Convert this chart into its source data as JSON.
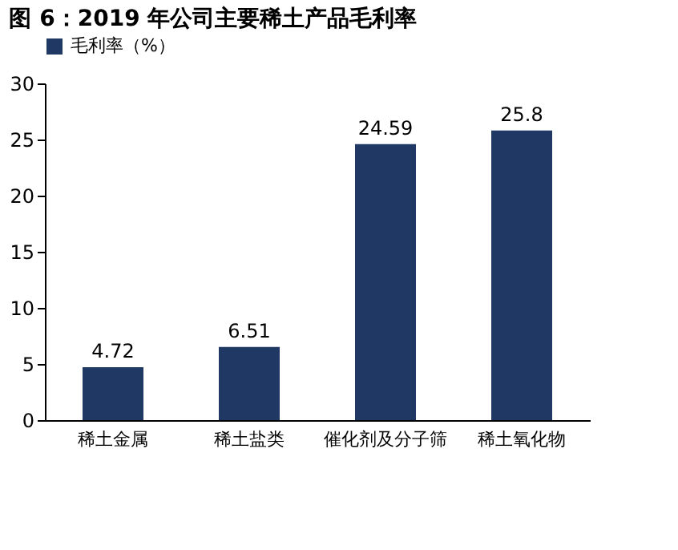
{
  "chart_data": {
    "type": "bar",
    "title": "图 6：2019 年公司主要稀土产品毛利率",
    "categories": [
      "稀土金属",
      "稀土盐类",
      "催化剂及分子筛",
      "稀土氧化物"
    ],
    "series": [
      {
        "name": "毛利率（%）",
        "color": "#1f3864",
        "values": [
          4.72,
          6.51,
          24.59,
          25.8
        ]
      }
    ],
    "ylim": [
      0,
      30
    ],
    "yticks": [
      0,
      5,
      10,
      15,
      20,
      25,
      30
    ],
    "grid": false,
    "legend": "top",
    "data_labels": true
  }
}
